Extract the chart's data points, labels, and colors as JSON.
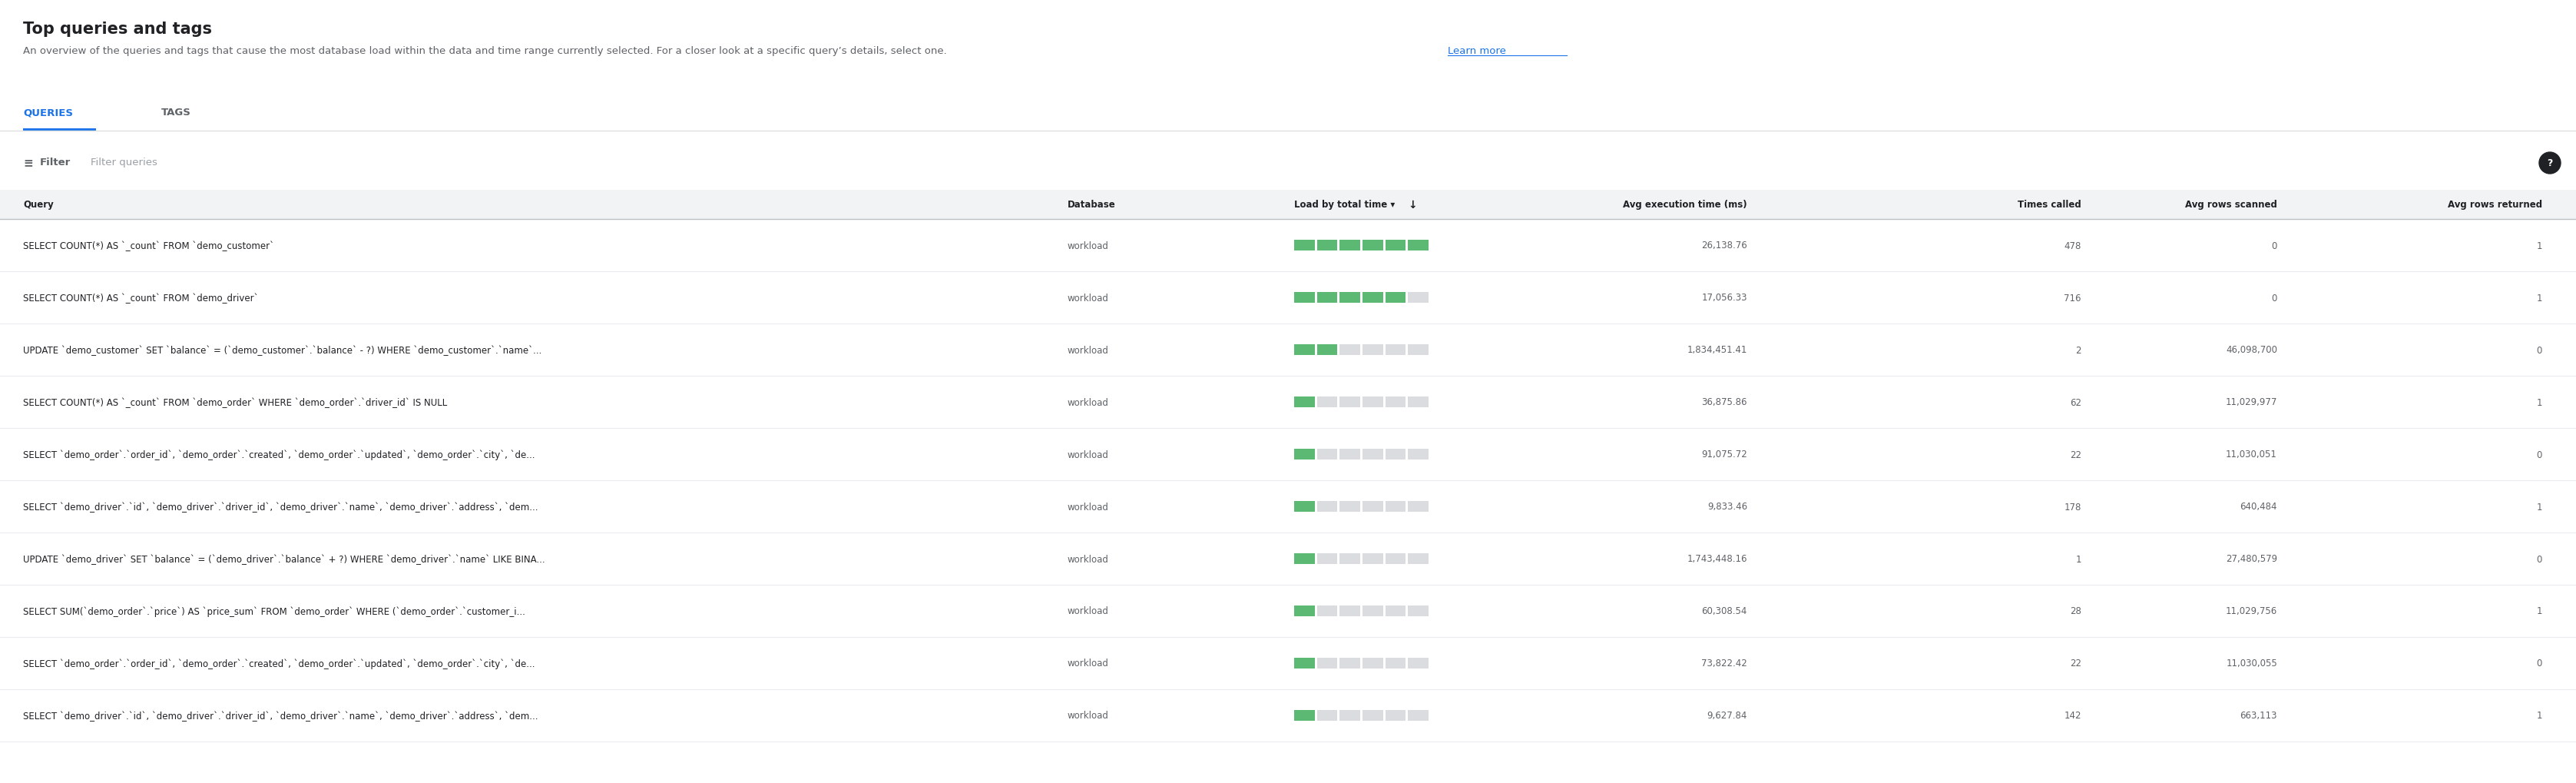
{
  "title": "Top queries and tags",
  "subtitle_part1": "An overview of the queries and tags that cause the most database load within the data and time range currently selected. For a closer look at a specific query’s details, select one. ",
  "subtitle_link": "Learn more",
  "tab_queries": "QUERIES",
  "tab_tags": "TAGS",
  "filter_placeholder": "Filter queries",
  "columns": [
    "Query",
    "Database",
    "Load by total time",
    "Avg execution time (ms)",
    "Times called",
    "Avg rows scanned",
    "Avg rows returned"
  ],
  "rows": [
    {
      "query": "SELECT COUNT(*) AS `_count` FROM `demo_customer`",
      "database": "workload",
      "load_segments": 6,
      "avg_exec_time": "26,138.76",
      "times_called": "478",
      "avg_rows_scanned": "0",
      "avg_rows_returned": "1"
    },
    {
      "query": "SELECT COUNT(*) AS `_count` FROM `demo_driver`",
      "database": "workload",
      "load_segments": 5,
      "avg_exec_time": "17,056.33",
      "times_called": "716",
      "avg_rows_scanned": "0",
      "avg_rows_returned": "1"
    },
    {
      "query": "UPDATE `demo_customer` SET `balance` = (`demo_customer`.`balance` - ?) WHERE `demo_customer`.`name`...",
      "database": "workload",
      "load_segments": 2,
      "avg_exec_time": "1,834,451.41",
      "times_called": "2",
      "avg_rows_scanned": "46,098,700",
      "avg_rows_returned": "0"
    },
    {
      "query": "SELECT COUNT(*) AS `_count` FROM `demo_order` WHERE `demo_order`.`driver_id` IS NULL",
      "database": "workload",
      "load_segments": 1,
      "avg_exec_time": "36,875.86",
      "times_called": "62",
      "avg_rows_scanned": "11,029,977",
      "avg_rows_returned": "1"
    },
    {
      "query": "SELECT `demo_order`.`order_id`, `demo_order`.`created`, `demo_order`.`updated`, `demo_order`.`city`, `de...",
      "database": "workload",
      "load_segments": 1,
      "avg_exec_time": "91,075.72",
      "times_called": "22",
      "avg_rows_scanned": "11,030,051",
      "avg_rows_returned": "0"
    },
    {
      "query": "SELECT `demo_driver`.`id`, `demo_driver`.`driver_id`, `demo_driver`.`name`, `demo_driver`.`address`, `dem...",
      "database": "workload",
      "load_segments": 1,
      "avg_exec_time": "9,833.46",
      "times_called": "178",
      "avg_rows_scanned": "640,484",
      "avg_rows_returned": "1"
    },
    {
      "query": "UPDATE `demo_driver` SET `balance` = (`demo_driver`.`balance` + ?) WHERE `demo_driver`.`name` LIKE BINA...",
      "database": "workload",
      "load_segments": 1,
      "avg_exec_time": "1,743,448.16",
      "times_called": "1",
      "avg_rows_scanned": "27,480,579",
      "avg_rows_returned": "0"
    },
    {
      "query": "SELECT SUM(`demo_order`.`price`) AS `price_sum` FROM `demo_order` WHERE (`demo_order`.`customer_i...",
      "database": "workload",
      "load_segments": 1,
      "avg_exec_time": "60,308.54",
      "times_called": "28",
      "avg_rows_scanned": "11,029,756",
      "avg_rows_returned": "1"
    },
    {
      "query": "SELECT `demo_order`.`order_id`, `demo_order`.`created`, `demo_order`.`updated`, `demo_order`.`city`, `de...",
      "database": "workload",
      "load_segments": 1,
      "avg_exec_time": "73,822.42",
      "times_called": "22",
      "avg_rows_scanned": "11,030,055",
      "avg_rows_returned": "0"
    },
    {
      "query": "SELECT `demo_driver`.`id`, `demo_driver`.`driver_id`, `demo_driver`.`name`, `demo_driver`.`address`, `dem...",
      "database": "workload",
      "load_segments": 1,
      "avg_exec_time": "9,627.84",
      "times_called": "142",
      "avg_rows_scanned": "663,113",
      "avg_rows_returned": "1"
    }
  ],
  "colors": {
    "background": "#ffffff",
    "title_color": "#202124",
    "subtitle_color": "#5f6368",
    "link_color": "#1a73e8",
    "tab_active_color": "#1a73e8",
    "tab_inactive_color": "#5f6368",
    "tab_underline": "#1a73e8",
    "tab_separator": "#e0e0e0",
    "header_bg": "#f1f3f4",
    "header_text": "#202124",
    "row_bg": "#ffffff",
    "row_border": "#e8eaed",
    "query_text": "#202124",
    "db_text": "#5f6368",
    "value_text": "#5f6368",
    "load_green": "#5bb974",
    "load_gray": "#dadce0",
    "filter_icon_color": "#5f6368",
    "filter_text_color": "#9aa0a6",
    "help_bg": "#202124",
    "help_text": "#ffffff"
  }
}
